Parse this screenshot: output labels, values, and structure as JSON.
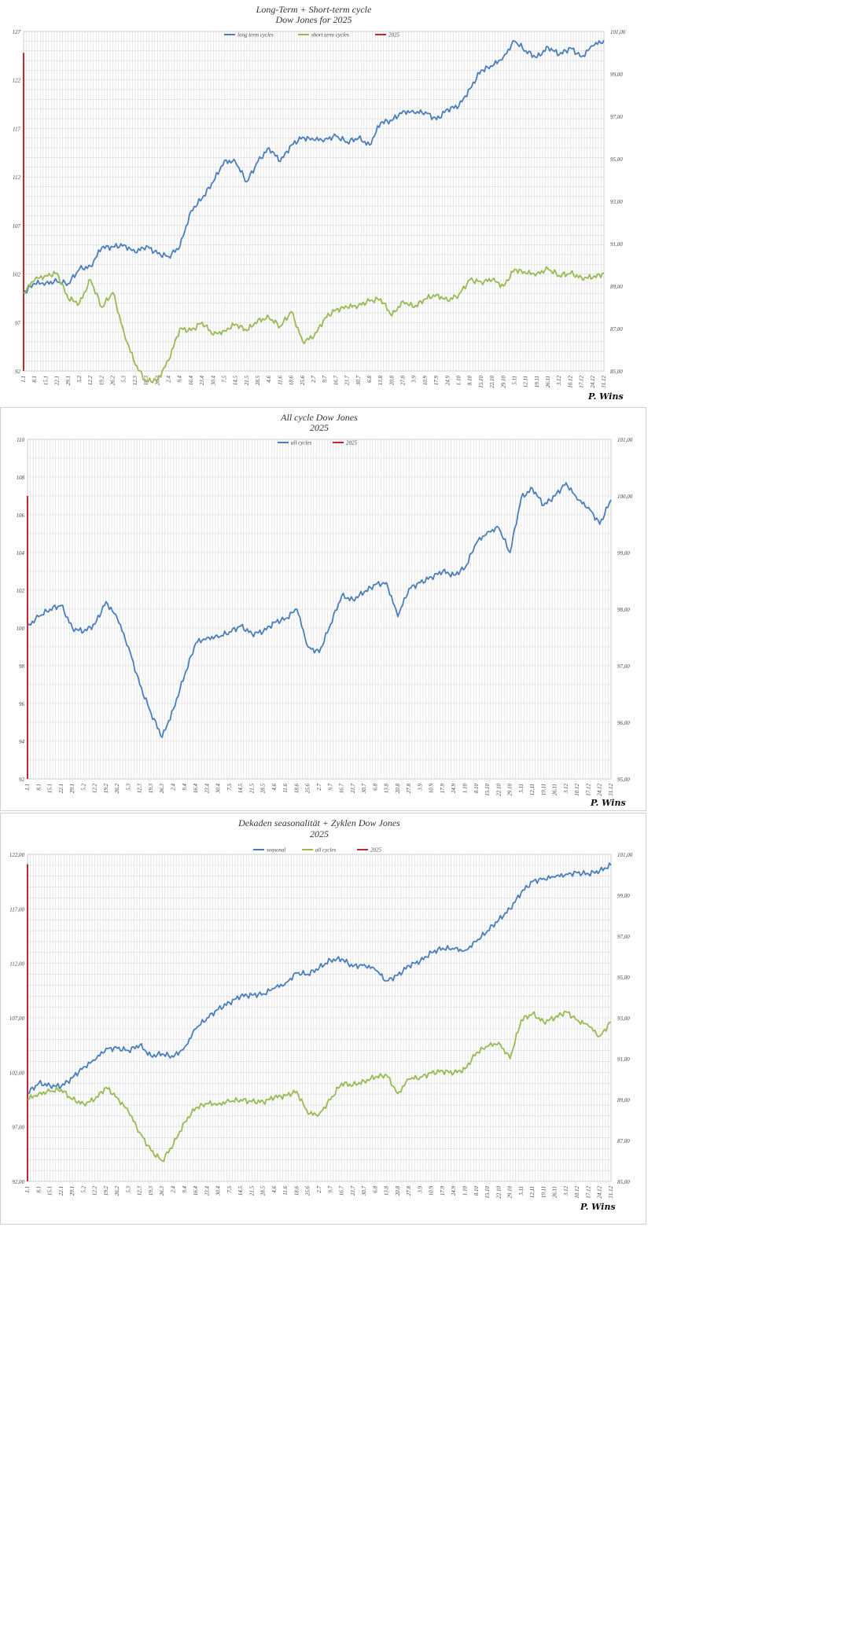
{
  "colors": {
    "blue": "#4a7ebb",
    "green": "#98b954",
    "red": "#c0282d",
    "grid": "#d9d9d9",
    "frame": "#bfbfbf"
  },
  "signature": "P. Wins",
  "x_ticks": [
    "1.1",
    "8.1",
    "15.1",
    "22.1",
    "29.1",
    "5.2",
    "12.2",
    "19.2",
    "26.2",
    "5.3",
    "12.3",
    "19.3",
    "26.3",
    "2.4",
    "9.4",
    "16.4",
    "23.4",
    "30.4",
    "7.5",
    "14.5",
    "21.5",
    "28.5",
    "4.6",
    "11.6",
    "18.6",
    "25.6",
    "2.7",
    "9.7",
    "16.7",
    "23.7",
    "30.7",
    "6.8",
    "13.8",
    "20.8",
    "27.8",
    "3.9",
    "10.9",
    "17.9",
    "24.9",
    "1.10",
    "8.10",
    "15.10",
    "22.10",
    "29.10",
    "5.11",
    "12.11",
    "19.11",
    "26.11",
    "3.12",
    "10.12",
    "17.12",
    "24.12",
    "31.12"
  ],
  "chart_data": [
    {
      "type": "line",
      "title": "Long-Term + Short-term cycle",
      "subtitle": "Dow Jones for 2025",
      "ylim": [
        92,
        127
      ],
      "y_ticks": [
        "92",
        "97",
        "102",
        "107",
        "112",
        "117",
        "122",
        "127"
      ],
      "y2lim": [
        85,
        101
      ],
      "y2_ticks": [
        "85,00",
        "87,00",
        "89,00",
        "91,00",
        "93,00",
        "95,00",
        "97,00",
        "99,00",
        "101,00"
      ],
      "legend_placement": "top-center",
      "grid": true,
      "marker_2025": {
        "name": "2025",
        "x": "1.1",
        "range": [
          92,
          124.8
        ]
      },
      "series": [
        {
          "name": "long term cycles",
          "axis": "left",
          "color": "blue",
          "values": [
            100.1,
            101.0,
            101.1,
            101.2,
            101.0,
            102.5,
            102.8,
            104.7,
            104.8,
            105.0,
            104.2,
            104.9,
            104.1,
            103.8,
            104.8,
            108.5,
            109.8,
            111.5,
            113.7,
            113.5,
            111.5,
            113.6,
            115.0,
            113.6,
            115.3,
            116.1,
            115.8,
            115.9,
            116.2,
            115.6,
            116.0,
            115.3,
            117.6,
            117.8,
            118.8,
            118.6,
            118.7,
            117.9,
            119.0,
            119.3,
            121.1,
            123.0,
            123.4,
            124.4,
            126.0,
            125.0,
            124.3,
            125.4,
            124.6,
            125.3,
            124.4,
            125.5,
            126.1
          ]
        },
        {
          "name": "short term cycles",
          "axis": "right",
          "color": "green",
          "values": [
            88.7,
            89.3,
            89.5,
            89.6,
            88.4,
            88.2,
            89.3,
            88.0,
            88.7,
            86.8,
            85.3,
            84.5,
            84.6,
            85.5,
            87.0,
            86.9,
            87.3,
            86.7,
            86.9,
            87.2,
            86.9,
            87.4,
            87.5,
            87.1,
            87.8,
            86.4,
            86.6,
            87.5,
            87.9,
            88.0,
            88.1,
            88.3,
            88.4,
            87.6,
            88.3,
            88.0,
            88.4,
            88.6,
            88.3,
            88.6,
            89.3,
            89.2,
            89.3,
            89.0,
            89.8,
            89.6,
            89.6,
            89.8,
            89.5,
            89.6,
            89.4,
            89.4,
            89.6
          ]
        }
      ]
    },
    {
      "type": "line",
      "title": "All cycle Dow Jones",
      "subtitle": "2025",
      "ylim": [
        92,
        110
      ],
      "y_ticks": [
        "92",
        "94",
        "96",
        "98",
        "100",
        "102",
        "104",
        "106",
        "108",
        "110"
      ],
      "y2lim": [
        95,
        101
      ],
      "y2_ticks": [
        "95,00",
        "96,00",
        "97,00",
        "98,00",
        "99,00",
        "100,00",
        "101,00"
      ],
      "legend_placement": "top-center",
      "grid": true,
      "marker_2025": {
        "name": "2025",
        "x": "1.1",
        "range": [
          92,
          107
        ]
      },
      "series": [
        {
          "name": "all cycles",
          "axis": "left",
          "color": "blue",
          "values": [
            100.1,
            100.6,
            101.0,
            101.2,
            100.0,
            99.8,
            100.2,
            101.4,
            100.5,
            99.0,
            97.0,
            95.5,
            94.2,
            95.7,
            97.5,
            99.2,
            99.5,
            99.5,
            99.8,
            100.1,
            99.7,
            99.8,
            100.3,
            100.5,
            101.0,
            99.0,
            98.7,
            100.2,
            101.7,
            101.5,
            101.9,
            102.3,
            102.4,
            100.6,
            102.1,
            102.4,
            102.7,
            103.0,
            102.8,
            103.2,
            104.5,
            105.1,
            105.3,
            104.0,
            106.9,
            107.4,
            106.5,
            107.0,
            107.7,
            106.8,
            106.4,
            105.5,
            106.8
          ]
        }
      ]
    },
    {
      "type": "line",
      "title": "Dekaden seasonalität + Zyklen Dow Jones",
      "subtitle": "2025",
      "ylim": [
        92,
        122
      ],
      "y_ticks": [
        "92,00",
        "97,00",
        "102,00",
        "107,00",
        "112,00",
        "117,00",
        "122,00"
      ],
      "y2lim": [
        85,
        101
      ],
      "y2_ticks": [
        "85,00",
        "87,00",
        "89,00",
        "91,00",
        "93,00",
        "95,00",
        "97,00",
        "99,00",
        "101,00"
      ],
      "legend_placement": "top-center",
      "grid": true,
      "marker_2025": {
        "name": "2025",
        "x": "1.1",
        "range": [
          92,
          121.1
        ]
      },
      "series": [
        {
          "name": "seasonal",
          "axis": "left",
          "color": "blue",
          "values": [
            100.1,
            101.0,
            100.8,
            100.7,
            101.5,
            102.5,
            103.1,
            104.2,
            104.2,
            104.0,
            104.5,
            103.5,
            103.7,
            103.4,
            104.3,
            106.0,
            107.0,
            107.8,
            108.4,
            109.0,
            109.1,
            109.2,
            109.7,
            110.2,
            111.1,
            111.0,
            111.6,
            112.3,
            112.4,
            111.7,
            111.9,
            111.4,
            110.4,
            110.9,
            111.8,
            112.2,
            113.0,
            113.4,
            113.3,
            113.2,
            114.0,
            115.0,
            116.0,
            117.0,
            118.5,
            119.5,
            119.8,
            119.9,
            120.2,
            120.3,
            120.2,
            120.5,
            121.0
          ]
        },
        {
          "name": "all cycles",
          "axis": "right",
          "color": "green",
          "values": [
            89.0,
            89.3,
            89.4,
            89.5,
            89.0,
            88.8,
            89.0,
            89.6,
            89.1,
            88.4,
            87.4,
            86.5,
            86.0,
            86.8,
            87.9,
            88.6,
            88.8,
            88.8,
            88.9,
            89.0,
            88.9,
            88.9,
            89.1,
            89.2,
            89.4,
            88.3,
            88.3,
            89.0,
            89.8,
            89.7,
            89.9,
            90.1,
            90.2,
            89.3,
            90.0,
            90.1,
            90.3,
            90.4,
            90.3,
            90.5,
            91.3,
            91.6,
            91.8,
            91.0,
            92.9,
            93.2,
            92.8,
            93.0,
            93.3,
            92.9,
            92.6,
            92.1,
            92.8
          ]
        }
      ]
    }
  ]
}
